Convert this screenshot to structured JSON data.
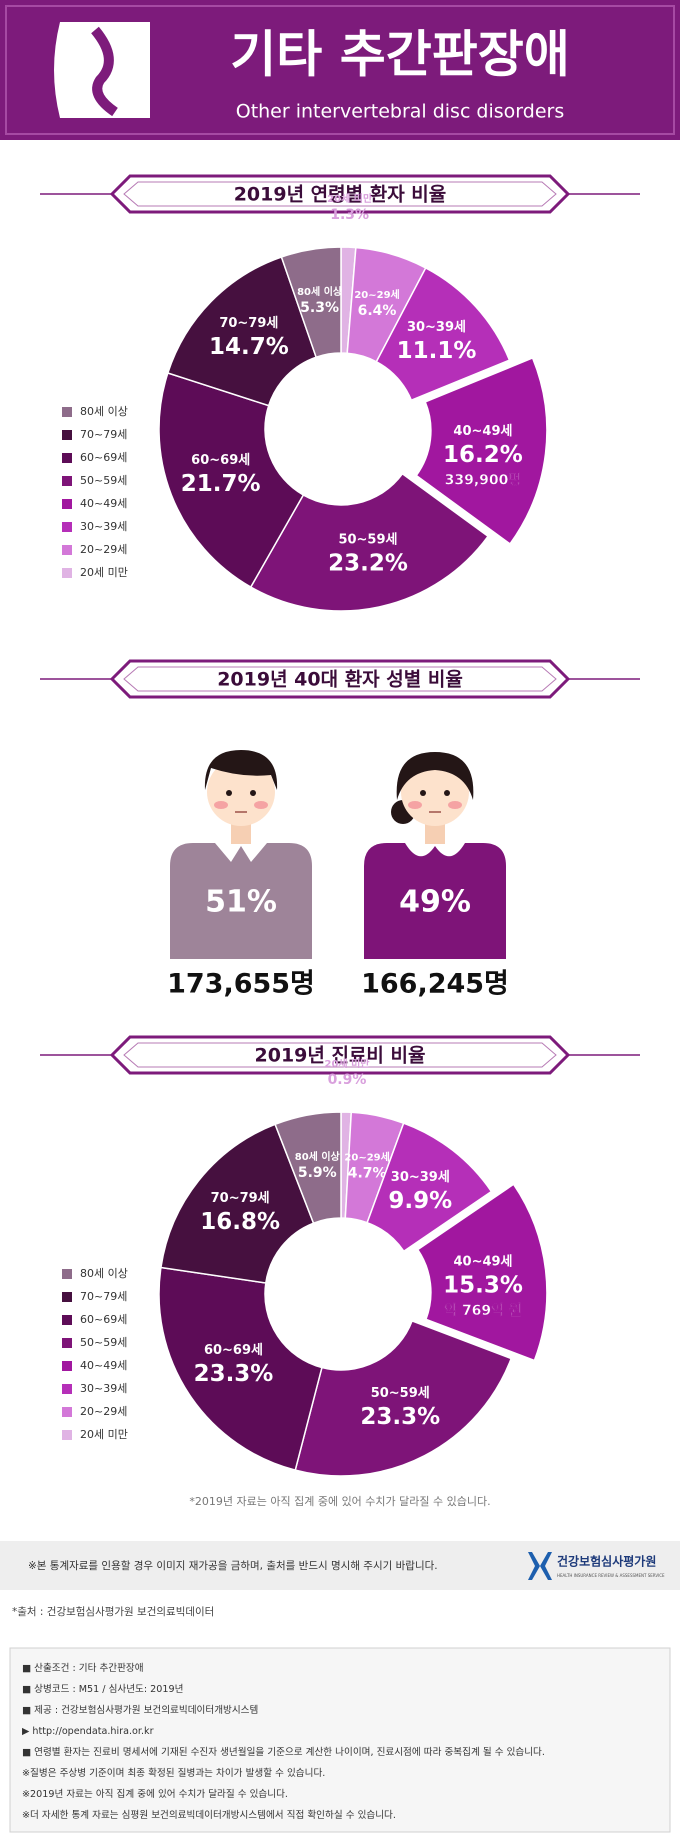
{
  "header": {
    "title": "기타 추간판장애",
    "subtitle": "Other intervertebral disc disorders"
  },
  "chart_data": [
    {
      "type": "pie",
      "title": "2019년 연령별 환자 비율",
      "categories": [
        "20세 미만",
        "20~29세",
        "30~39세",
        "40~49세",
        "50~59세",
        "60~69세",
        "70~79세",
        "80세 이상"
      ],
      "values": [
        1.3,
        6.4,
        11.1,
        16.2,
        23.2,
        21.7,
        14.7,
        5.3
      ],
      "value_labels": [
        "1.3%",
        "6.4%",
        "11.1%",
        "16.2%",
        "23.2%",
        "21.7%",
        "14.7%",
        "5.3%"
      ],
      "notes": [
        null,
        null,
        null,
        "339,900명",
        null,
        null,
        null,
        null
      ],
      "explode": [
        false,
        false,
        false,
        true,
        false,
        false,
        false,
        false
      ],
      "colors": [
        "#e0b3e4",
        "#d378d8",
        "#b52fb8",
        "#a1179f",
        "#7e1478",
        "#5d0c57",
        "#46103f",
        "#8e6c8a"
      ]
    },
    {
      "type": "pie",
      "title": "2019년 진료비 비율",
      "categories": [
        "20세 미만",
        "20~29세",
        "30~39세",
        "40~49세",
        "50~59세",
        "60~69세",
        "70~79세",
        "80세 이상"
      ],
      "values": [
        0.9,
        4.7,
        9.9,
        15.3,
        23.3,
        23.3,
        16.8,
        5.9
      ],
      "value_labels": [
        "0.9%",
        "4.7%",
        "9.9%",
        "15.3%",
        "23.3%",
        "23.3%",
        "16.8%",
        "5.9%"
      ],
      "notes": [
        null,
        null,
        null,
        "약 769억 원",
        null,
        null,
        null,
        null
      ],
      "explode": [
        false,
        false,
        false,
        true,
        false,
        false,
        false,
        false
      ],
      "colors": [
        "#e0b3e4",
        "#d378d8",
        "#b52fb8",
        "#a1179f",
        "#7e1478",
        "#5d0c57",
        "#46103f",
        "#8e6c8a"
      ],
      "note": "*2019년 자료는 아직 집계 중에 있어 수치가 달라질 수 있습니다."
    }
  ],
  "gender": {
    "title": "2019년 40대 환자 성별 비율",
    "people": [
      {
        "percent": "51%",
        "count": "173,655명",
        "color": "#9e8499"
      },
      {
        "percent": "49%",
        "count": "166,245명",
        "color": "#7e1478"
      }
    ]
  },
  "notice": {
    "text": "※본 통계자료를 인용할 경우 이미지 재가공을 금하며, 출처를 반드시 명시해 주시기 바랍니다.",
    "logo": "건강보험심사평가원",
    "logo_en": "HEALTH INSURANCE REVIEW & ASSESSMENT SERVICE"
  },
  "source": "*출처 : 건강보험심사평가원 보건의료빅데이터",
  "info": [
    "■ 산출조건 : 기타 추간판장애",
    "■ 상병코드 : M51 / 심사년도: 2019년",
    "■ 제공 : 건강보험심사평가원 보건의료빅데이터개방시스템",
    "▶ http://opendata.hira.or.kr",
    "■ 연령별 환자는 진료비 명세서에 기재된 수진자 생년월일을 기준으로 계산한 나이이며, 진료시점에 따라 중복집계 될 수 있습니다.",
    "※질병은 주상병 기준이며 최종 확정된 질병과는 차이가 발생할 수 있습니다.",
    "※2019년 자료는 아직 집계 중에 있어 수치가 달라질 수 있습니다.",
    "※더 자세한 통계 자료는 심평원 보건의료빅데이터개방시스템에서 직접 확인하실 수 있습니다."
  ]
}
